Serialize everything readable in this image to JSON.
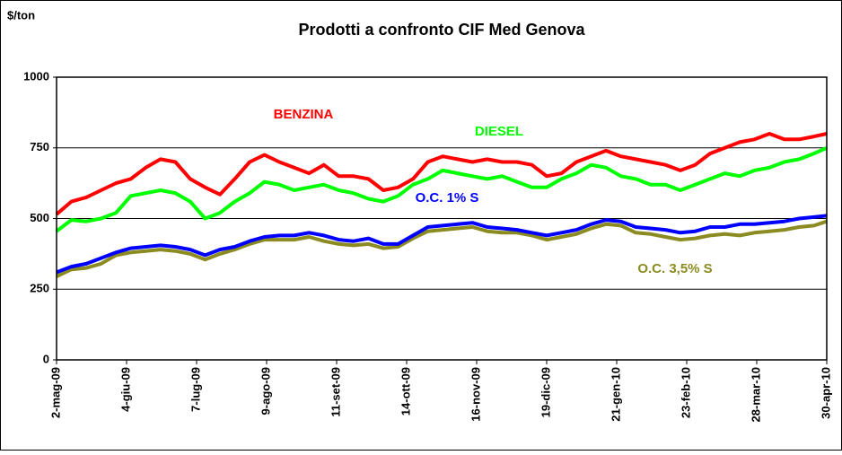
{
  "chart_data": {
    "type": "line",
    "title": "Prodotti a confronto CIF Med Genova",
    "y_label": "$/ton",
    "x": [
      "2009-05-02",
      "2009-05-09",
      "2009-05-16",
      "2009-05-23",
      "2009-05-30",
      "2009-06-06",
      "2009-06-13",
      "2009-06-20",
      "2009-06-27",
      "2009-07-04",
      "2009-07-11",
      "2009-07-18",
      "2009-07-25",
      "2009-08-01",
      "2009-08-08",
      "2009-08-15",
      "2009-08-22",
      "2009-08-29",
      "2009-09-05",
      "2009-09-12",
      "2009-09-19",
      "2009-09-26",
      "2009-10-03",
      "2009-10-10",
      "2009-10-17",
      "2009-10-24",
      "2009-10-31",
      "2009-11-07",
      "2009-11-14",
      "2009-11-21",
      "2009-11-28",
      "2009-12-05",
      "2009-12-12",
      "2009-12-19",
      "2009-12-26",
      "2010-01-02",
      "2010-01-09",
      "2010-01-16",
      "2010-01-23",
      "2010-01-30",
      "2010-02-06",
      "2010-02-13",
      "2010-02-20",
      "2010-02-27",
      "2010-03-06",
      "2010-03-13",
      "2010-03-20",
      "2010-03-27",
      "2010-04-03",
      "2010-04-10",
      "2010-04-17",
      "2010-04-24",
      "2010-04-30"
    ],
    "series": [
      {
        "name": "BENZINA",
        "color": "#ff0000",
        "values": [
          515,
          560,
          575,
          600,
          625,
          640,
          680,
          710,
          700,
          640,
          610,
          585,
          640,
          700,
          725,
          700,
          680,
          660,
          690,
          650,
          650,
          640,
          600,
          610,
          640,
          700,
          720,
          710,
          700,
          710,
          700,
          700,
          690,
          650,
          660,
          700,
          720,
          740,
          720,
          710,
          700,
          690,
          670,
          690,
          730,
          750,
          770,
          780,
          800,
          780,
          780,
          790,
          800
        ]
      },
      {
        "name": "DIESEL",
        "color": "#00ff00",
        "values": [
          455,
          495,
          490,
          500,
          520,
          580,
          590,
          600,
          590,
          560,
          500,
          520,
          560,
          590,
          630,
          620,
          600,
          610,
          620,
          600,
          590,
          570,
          560,
          580,
          620,
          640,
          670,
          660,
          650,
          640,
          650,
          630,
          610,
          610,
          640,
          660,
          690,
          680,
          650,
          640,
          620,
          620,
          600,
          620,
          640,
          660,
          650,
          670,
          680,
          700,
          710,
          730,
          750
        ]
      },
      {
        "name": "O.C. 1% S",
        "color": "#0000ff",
        "values": [
          310,
          330,
          340,
          360,
          380,
          395,
          400,
          405,
          400,
          390,
          370,
          390,
          400,
          420,
          435,
          440,
          440,
          450,
          440,
          425,
          420,
          430,
          410,
          410,
          440,
          470,
          475,
          480,
          485,
          470,
          465,
          460,
          450,
          440,
          450,
          460,
          480,
          495,
          490,
          470,
          465,
          460,
          450,
          455,
          470,
          470,
          480,
          480,
          485,
          490,
          500,
          505,
          510
        ]
      },
      {
        "name": "O.C. 3,5% S",
        "color": "#8b8b22",
        "values": [
          295,
          320,
          325,
          340,
          370,
          380,
          385,
          390,
          385,
          375,
          355,
          375,
          390,
          410,
          425,
          425,
          425,
          435,
          420,
          410,
          405,
          410,
          395,
          400,
          430,
          455,
          460,
          465,
          470,
          455,
          450,
          450,
          440,
          425,
          435,
          445,
          465,
          480,
          475,
          450,
          445,
          435,
          425,
          430,
          440,
          445,
          440,
          450,
          455,
          460,
          470,
          475,
          490
        ]
      }
    ],
    "xlim": [
      "2009-05-02",
      "2010-04-30"
    ],
    "xticks": [
      {
        "value": "2009-05-02",
        "label": "2-mag-09"
      },
      {
        "value": "2009-06-04",
        "label": "4-giu-09"
      },
      {
        "value": "2009-07-07",
        "label": "7-lug-09"
      },
      {
        "value": "2009-08-09",
        "label": "9-ago-09"
      },
      {
        "value": "2009-09-11",
        "label": "11-set-09"
      },
      {
        "value": "2009-10-14",
        "label": "14-ott-09"
      },
      {
        "value": "2009-11-16",
        "label": "16-nov-09"
      },
      {
        "value": "2009-12-19",
        "label": "19-dic-09"
      },
      {
        "value": "2010-01-21",
        "label": "21-gen-10"
      },
      {
        "value": "2010-02-23",
        "label": "23-feb-10"
      },
      {
        "value": "2010-03-28",
        "label": "28-mar-10"
      },
      {
        "value": "2010-04-30",
        "label": "30-apr-10"
      }
    ],
    "ylim": [
      0,
      1000
    ],
    "yticks": [
      0,
      250,
      500,
      750,
      1000
    ],
    "grid": true
  }
}
